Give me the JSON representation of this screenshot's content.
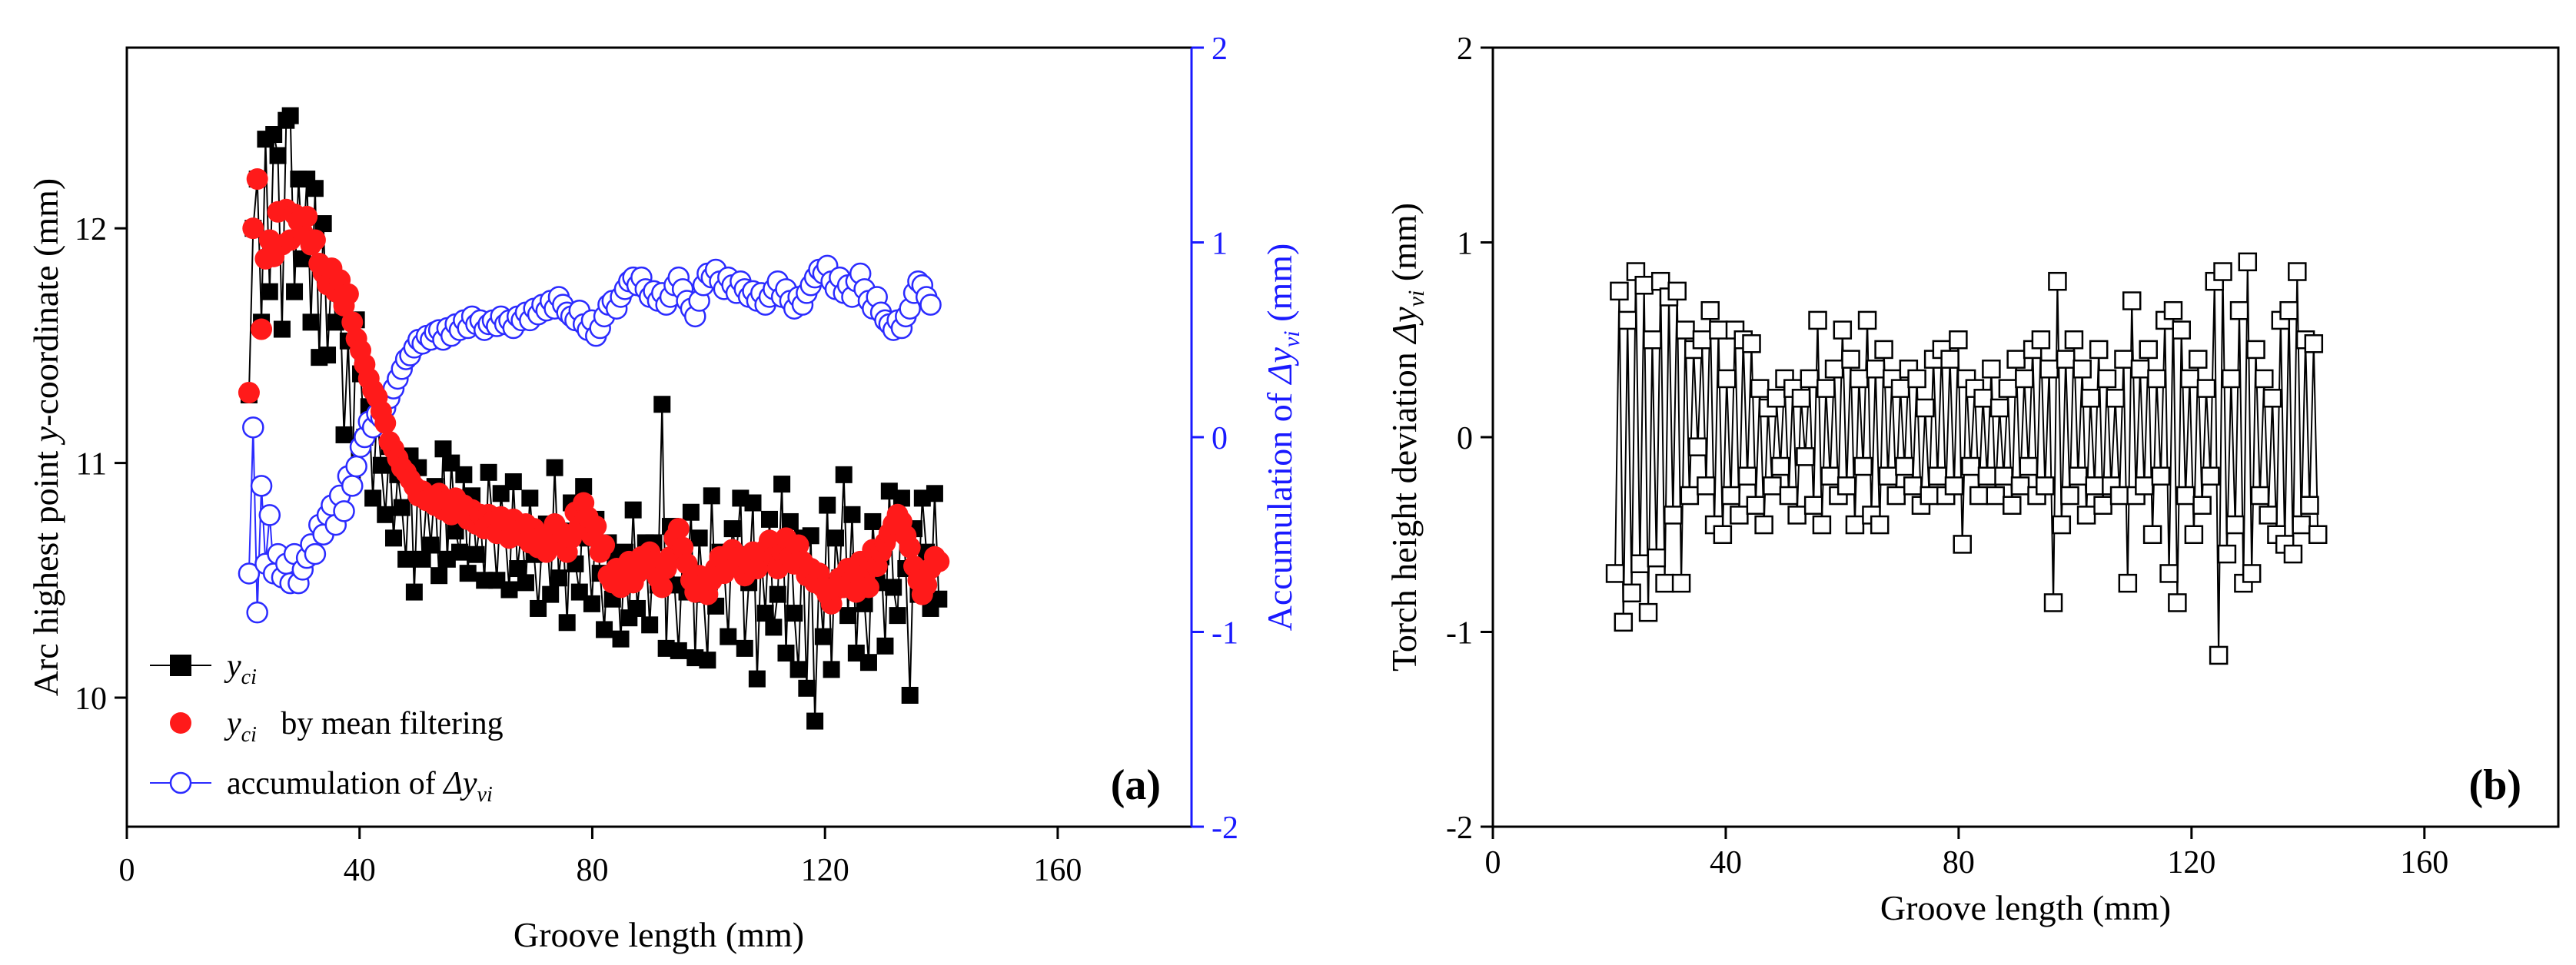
{
  "panels": {
    "a": {
      "label": "(a)"
    },
    "b": {
      "label": "(b)"
    }
  },
  "colors": {
    "axis": "#000000",
    "right_axis": "#1a1aff",
    "filtered": "#ff1a1a",
    "accumulation": "#2b2bff",
    "series_black": "#000000"
  },
  "chart_data": [
    {
      "type": "scatter",
      "panel": "a",
      "x_label": {
        "main": "Groove length (mm)"
      },
      "y_label": {
        "pre": "Arc highest point ",
        "var": "y",
        "post": "-coordinate (mm)"
      },
      "y2_label": {
        "pre": "Accumulation of ",
        "var": "Δy",
        "sub": "vi",
        "post": "  (mm)"
      },
      "xlim": [
        0,
        183
      ],
      "ylim": [
        9.45,
        12.77
      ],
      "y2lim": [
        -2,
        2
      ],
      "x_ticks": [
        "0",
        "40",
        "80",
        "120",
        "160"
      ],
      "x_tick_values": [
        0,
        40,
        80,
        120,
        160
      ],
      "y_ticks": [
        "10",
        "11",
        "12"
      ],
      "y_tick_values": [
        10,
        11,
        12
      ],
      "y2_ticks": [
        "-2",
        "-1",
        "0",
        "1",
        "2"
      ],
      "y2_tick_values": [
        -2,
        -1,
        0,
        1,
        2
      ],
      "legend_position": "bottom-left",
      "legend": [
        {
          "var": "y",
          "sub": "ci",
          "text": ""
        },
        {
          "var": "y",
          "sub": "ci",
          "text": "   by mean filtering"
        },
        {
          "var": "",
          "sub": "",
          "text": "accumulation of ",
          "var2": "Δy",
          "sub2": "vi"
        }
      ],
      "series": [
        {
          "name": "y_ci",
          "axis": "left",
          "marker": "filled-square",
          "connected": true,
          "x_start": 21,
          "x_step": 0.71,
          "values": [
            11.29,
            12.0,
            12.21,
            11.6,
            12.38,
            11.73,
            12.4,
            12.31,
            11.57,
            12.46,
            12.48,
            11.73,
            12.21,
            11.87,
            12.21,
            11.6,
            12.17,
            11.45,
            12.02,
            11.46,
            11.81,
            11.6,
            11.73,
            11.12,
            11.52,
            10.95,
            11.61,
            11.38,
            11.11,
            11.24,
            10.85,
            11.22,
            10.99,
            10.78,
            11.07,
            10.68,
            10.95,
            10.81,
            10.59,
            11.03,
            10.45,
            10.98,
            10.59,
            10.85,
            10.65,
            10.9,
            10.52,
            11.06,
            10.59,
            11.0,
            10.71,
            10.62,
            10.95,
            10.53,
            10.86,
            10.61,
            10.76,
            10.5,
            10.96,
            10.74,
            10.5,
            10.87,
            10.7,
            10.46,
            10.92,
            10.55,
            10.72,
            10.49,
            10.85,
            10.61,
            10.38,
            10.68,
            10.74,
            10.44,
            10.98,
            10.51,
            10.71,
            10.32,
            10.83,
            10.57,
            10.45,
            10.9,
            10.68,
            10.4,
            10.76,
            10.53,
            10.29,
            10.66,
            10.42,
            10.61,
            10.25,
            10.62,
            10.34,
            10.8,
            10.38,
            10.57,
            10.66,
            10.31,
            10.66,
            10.48,
            11.25,
            10.21,
            10.73,
            10.48,
            10.2,
            10.62,
            10.45,
            10.79,
            10.17,
            10.68,
            10.44,
            10.16,
            10.86,
            10.39,
            10.62,
            10.56,
            10.26,
            10.72,
            10.61,
            10.85,
            10.21,
            10.49,
            10.83,
            10.08,
            10.61,
            10.36,
            10.76,
            10.3,
            10.44,
            10.91,
            10.19,
            10.75,
            10.36,
            10.12,
            10.68,
            10.04,
            10.69,
            9.9,
            10.52,
            10.26,
            10.82,
            10.12,
            10.68,
            10.51,
            10.95,
            10.35,
            10.78,
            10.19,
            10.58,
            10.4,
            10.15,
            10.75,
            10.49,
            10.6,
            10.22,
            10.88,
            10.47,
            10.35,
            10.85,
            10.55,
            10.01,
            10.72,
            10.44,
            10.85,
            10.62,
            10.38,
            10.87,
            10.42
          ]
        },
        {
          "name": "y_ci by mean filtering",
          "axis": "left",
          "marker": "filled-circle",
          "connected": false,
          "x_start": 21,
          "x_step": 0.71,
          "values": [
            11.3,
            12.0,
            12.21,
            11.57,
            11.87,
            11.95,
            11.88,
            12.07,
            11.93,
            12.08,
            11.95,
            12.06,
            12.03,
            11.98,
            12.05,
            11.93,
            11.95,
            11.85,
            11.81,
            11.76,
            11.83,
            11.73,
            11.78,
            11.67,
            11.72,
            11.6,
            11.53,
            11.48,
            11.42,
            11.36,
            11.31,
            11.28,
            11.22,
            11.17,
            11.09,
            11.06,
            11.02,
            10.98,
            10.96,
            10.93,
            10.9,
            10.86,
            10.88,
            10.84,
            10.85,
            10.82,
            10.87,
            10.8,
            10.84,
            10.78,
            10.85,
            10.79,
            10.82,
            10.76,
            10.8,
            10.74,
            10.78,
            10.72,
            10.78,
            10.75,
            10.7,
            10.77,
            10.73,
            10.68,
            10.76,
            10.71,
            10.69,
            10.74,
            10.66,
            10.72,
            10.64,
            10.69,
            10.62,
            10.67,
            10.74,
            10.66,
            10.7,
            10.62,
            10.68,
            10.79,
            10.73,
            10.83,
            10.77,
            10.69,
            10.73,
            10.62,
            10.65,
            10.52,
            10.49,
            10.55,
            10.47,
            10.51,
            10.58,
            10.49,
            10.53,
            10.6,
            10.55,
            10.62,
            10.58,
            10.51,
            10.47,
            10.55,
            10.6,
            10.68,
            10.72,
            10.64,
            10.57,
            10.5,
            10.45,
            10.52,
            10.48,
            10.44,
            10.5,
            10.55,
            10.6,
            10.53,
            10.58,
            10.63,
            10.56,
            10.6,
            10.52,
            10.57,
            10.62,
            10.55,
            10.6,
            10.63,
            10.67,
            10.6,
            10.55,
            10.62,
            10.68,
            10.6,
            10.57,
            10.65,
            10.58,
            10.52,
            10.55,
            10.49,
            10.53,
            10.47,
            10.44,
            10.4,
            10.46,
            10.51,
            10.47,
            10.55,
            10.5,
            10.45,
            10.58,
            10.52,
            10.47,
            10.63,
            10.56,
            10.62,
            10.66,
            10.7,
            10.74,
            10.78,
            10.75,
            10.69,
            10.64,
            10.56,
            10.5,
            10.44,
            10.48,
            10.55,
            10.6,
            10.58
          ]
        },
        {
          "name": "accumulation of Δy_vi",
          "axis": "right",
          "marker": "open-circle",
          "connected": true,
          "x_start": 21,
          "x_step": 0.71,
          "values": [
            -0.7,
            0.05,
            -0.9,
            -0.25,
            -0.65,
            -0.4,
            -0.7,
            -0.6,
            -0.72,
            -0.65,
            -0.75,
            -0.6,
            -0.75,
            -0.68,
            -0.62,
            -0.55,
            -0.6,
            -0.45,
            -0.5,
            -0.4,
            -0.35,
            -0.45,
            -0.3,
            -0.38,
            -0.2,
            -0.25,
            -0.15,
            -0.05,
            0.0,
            0.08,
            0.05,
            0.12,
            0.1,
            0.15,
            0.2,
            0.25,
            0.3,
            0.35,
            0.4,
            0.42,
            0.46,
            0.5,
            0.48,
            0.52,
            0.5,
            0.54,
            0.55,
            0.5,
            0.56,
            0.52,
            0.58,
            0.55,
            0.6,
            0.56,
            0.62,
            0.58,
            0.6,
            0.55,
            0.58,
            0.6,
            0.57,
            0.62,
            0.58,
            0.6,
            0.56,
            0.62,
            0.6,
            0.64,
            0.6,
            0.66,
            0.63,
            0.68,
            0.65,
            0.7,
            0.66,
            0.72,
            0.68,
            0.64,
            0.62,
            0.6,
            0.65,
            0.58,
            0.55,
            0.6,
            0.52,
            0.56,
            0.62,
            0.68,
            0.7,
            0.66,
            0.72,
            0.76,
            0.8,
            0.82,
            0.78,
            0.82,
            0.76,
            0.72,
            0.75,
            0.7,
            0.74,
            0.68,
            0.72,
            0.78,
            0.82,
            0.76,
            0.7,
            0.66,
            0.62,
            0.7,
            0.78,
            0.84,
            0.82,
            0.86,
            0.8,
            0.76,
            0.82,
            0.78,
            0.74,
            0.8,
            0.76,
            0.72,
            0.75,
            0.7,
            0.74,
            0.68,
            0.72,
            0.76,
            0.8,
            0.72,
            0.76,
            0.7,
            0.66,
            0.72,
            0.68,
            0.74,
            0.78,
            0.82,
            0.86,
            0.84,
            0.88,
            0.8,
            0.76,
            0.82,
            0.74,
            0.78,
            0.72,
            0.8,
            0.84,
            0.76,
            0.7,
            0.66,
            0.72,
            0.64,
            0.6,
            0.58,
            0.55,
            0.6,
            0.56,
            0.62,
            0.66,
            0.74,
            0.8,
            0.78,
            0.72,
            0.68
          ]
        }
      ]
    },
    {
      "type": "line",
      "panel": "b",
      "x_label": {
        "main": "Groove length (mm)"
      },
      "y_label": {
        "pre": "Torch height deviation ",
        "var": "Δy",
        "sub": "vi",
        "post": " (mm)"
      },
      "xlim": [
        0,
        183
      ],
      "ylim": [
        -2,
        2
      ],
      "x_ticks": [
        "0",
        "40",
        "80",
        "120",
        "160"
      ],
      "x_tick_values": [
        0,
        40,
        80,
        120,
        160
      ],
      "y_ticks": [
        "-2",
        "-1",
        "0",
        "1",
        "2"
      ],
      "y_tick_values": [
        -2,
        -1,
        0,
        1,
        2
      ],
      "series": [
        {
          "name": "Δy_vi",
          "marker": "open-square",
          "connected": true,
          "x_start": 21,
          "x_step": 0.71,
          "values": [
            -0.7,
            0.75,
            -0.95,
            0.6,
            -0.8,
            0.85,
            -0.65,
            0.78,
            -0.9,
            0.5,
            -0.62,
            0.8,
            -0.75,
            0.72,
            -0.4,
            0.75,
            -0.75,
            0.55,
            -0.3,
            0.45,
            -0.05,
            0.5,
            -0.25,
            0.65,
            -0.45,
            0.55,
            -0.5,
            0.3,
            -0.3,
            0.55,
            -0.4,
            0.5,
            -0.2,
            0.48,
            -0.35,
            0.25,
            -0.45,
            0.15,
            -0.25,
            0.2,
            -0.15,
            0.3,
            -0.3,
            0.25,
            -0.4,
            0.2,
            -0.1,
            0.3,
            -0.35,
            0.6,
            -0.45,
            0.25,
            -0.2,
            0.35,
            -0.3,
            0.55,
            -0.25,
            0.4,
            -0.45,
            0.3,
            -0.15,
            0.6,
            -0.4,
            0.35,
            -0.45,
            0.45,
            -0.2,
            0.3,
            -0.3,
            0.25,
            -0.15,
            0.35,
            -0.25,
            0.3,
            -0.35,
            0.15,
            -0.3,
            0.4,
            -0.2,
            0.45,
            -0.3,
            0.4,
            -0.25,
            0.5,
            -0.55,
            0.3,
            -0.15,
            0.25,
            -0.3,
            0.2,
            -0.2,
            0.35,
            -0.3,
            0.15,
            -0.2,
            0.25,
            -0.35,
            0.4,
            -0.25,
            0.3,
            -0.15,
            0.45,
            -0.3,
            0.5,
            -0.25,
            0.35,
            -0.85,
            0.8,
            -0.45,
            0.4,
            -0.3,
            0.5,
            -0.2,
            0.35,
            -0.4,
            0.2,
            -0.25,
            0.45,
            -0.35,
            0.3,
            -0.25,
            0.2,
            -0.3,
            0.4,
            -0.75,
            0.7,
            -0.3,
            0.35,
            -0.25,
            0.45,
            -0.5,
            0.3,
            -0.2,
            0.6,
            -0.7,
            0.65,
            -0.85,
            0.55,
            -0.3,
            0.3,
            -0.5,
            0.4,
            -0.35,
            0.25,
            -0.2,
            0.8,
            -1.12,
            0.85,
            -0.6,
            0.3,
            -0.45,
            0.65,
            -0.75,
            0.9,
            -0.7,
            0.45,
            -0.3,
            0.3,
            -0.4,
            0.2,
            -0.5,
            0.6,
            -0.55,
            0.65,
            -0.6,
            0.85,
            -0.45,
            0.5,
            -0.35,
            0.48,
            -0.5
          ]
        }
      ]
    }
  ]
}
